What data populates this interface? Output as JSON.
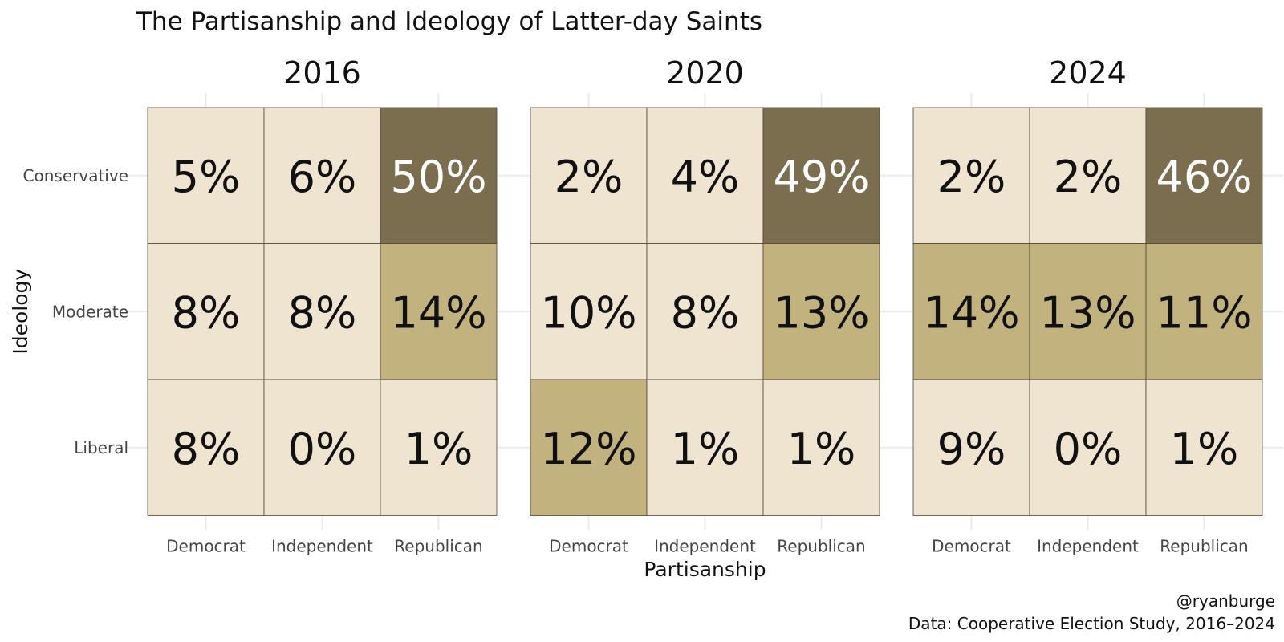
{
  "chart_data": {
    "type": "heatmap",
    "title": "The Partisanship and Ideology of Latter-day Saints",
    "xlabel": "Partisanship",
    "ylabel": "Ideology",
    "x_categories": [
      "Democrat",
      "Independent",
      "Republican"
    ],
    "y_categories": [
      "Conservative",
      "Moderate",
      "Liberal"
    ],
    "panels": [
      {
        "label": "2016",
        "values": [
          [
            5,
            6,
            50
          ],
          [
            8,
            8,
            14
          ],
          [
            8,
            0,
            1
          ]
        ],
        "value_labels": [
          [
            "5%",
            "6%",
            "50%"
          ],
          [
            "8%",
            "8%",
            "14%"
          ],
          [
            "8%",
            "0%",
            "1%"
          ]
        ]
      },
      {
        "label": "2020",
        "values": [
          [
            2,
            4,
            49
          ],
          [
            10,
            8,
            13
          ],
          [
            12,
            1,
            1
          ]
        ],
        "value_labels": [
          [
            "2%",
            "4%",
            "49%"
          ],
          [
            "10%",
            "8%",
            "13%"
          ],
          [
            "12%",
            "1%",
            "1%"
          ]
        ]
      },
      {
        "label": "2024",
        "values": [
          [
            2,
            2,
            46
          ],
          [
            14,
            13,
            11
          ],
          [
            9,
            0,
            1
          ]
        ],
        "value_labels": [
          [
            "2%",
            "2%",
            "46%"
          ],
          [
            "14%",
            "13%",
            "11%"
          ],
          [
            "9%",
            "0%",
            "1%"
          ]
        ]
      }
    ],
    "fill_bins": [
      {
        "min": 0,
        "max": 10,
        "color": "#efe4cf"
      },
      {
        "min": 11,
        "max": 20,
        "color": "#c2b27d"
      },
      {
        "min": 21,
        "max": 100,
        "color": "#7b6e4e"
      }
    ],
    "text_colors": {
      "dark": "#111111",
      "light": "#ffffff"
    },
    "grid": true,
    "legend": "none"
  },
  "caption": {
    "handle": "@ryanburge",
    "source": "Data: Cooperative Election Study, 2016–2024"
  }
}
